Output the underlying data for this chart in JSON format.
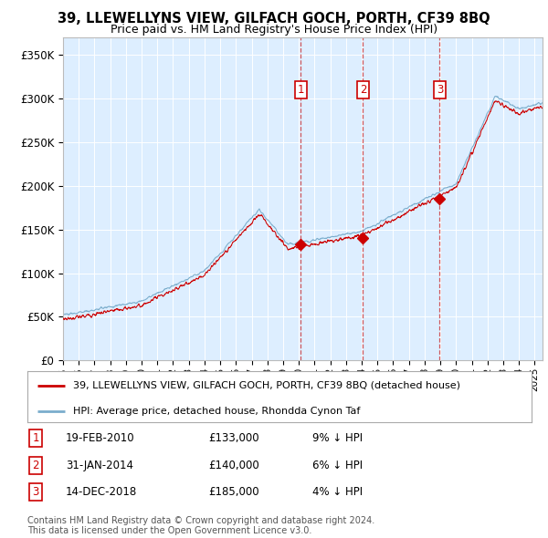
{
  "title": "39, LLEWELLYNS VIEW, GILFACH GOCH, PORTH, CF39 8BQ",
  "subtitle": "Price paid vs. HM Land Registry's House Price Index (HPI)",
  "ylim": [
    0,
    370000
  ],
  "yticks": [
    0,
    50000,
    100000,
    150000,
    200000,
    250000,
    300000,
    350000
  ],
  "ytick_labels": [
    "£0",
    "£50K",
    "£100K",
    "£150K",
    "£200K",
    "£250K",
    "£300K",
    "£350K"
  ],
  "xlim_start": 1995.0,
  "xlim_end": 2025.5,
  "background_color": "#ffffff",
  "plot_bg_color": "#ddeeff",
  "grid_color": "#ffffff",
  "sale_dates": [
    2010.13,
    2014.08,
    2018.96
  ],
  "sale_prices": [
    133000,
    140000,
    185000
  ],
  "sale_labels": [
    "1",
    "2",
    "3"
  ],
  "sale_label_info": [
    {
      "num": "1",
      "date": "19-FEB-2010",
      "price": "£133,000",
      "hpi": "9% ↓ HPI"
    },
    {
      "num": "2",
      "date": "31-JAN-2014",
      "price": "£140,000",
      "hpi": "6% ↓ HPI"
    },
    {
      "num": "3",
      "date": "14-DEC-2018",
      "price": "£185,000",
      "hpi": "4% ↓ HPI"
    }
  ],
  "legend_line1": "39, LLEWELLYNS VIEW, GILFACH GOCH, PORTH, CF39 8BQ (detached house)",
  "legend_line2": "HPI: Average price, detached house, Rhondda Cynon Taf",
  "footer1": "Contains HM Land Registry data © Crown copyright and database right 2024.",
  "footer2": "This data is licensed under the Open Government Licence v3.0.",
  "red_line_color": "#cc0000",
  "blue_line_color": "#7aadcc"
}
